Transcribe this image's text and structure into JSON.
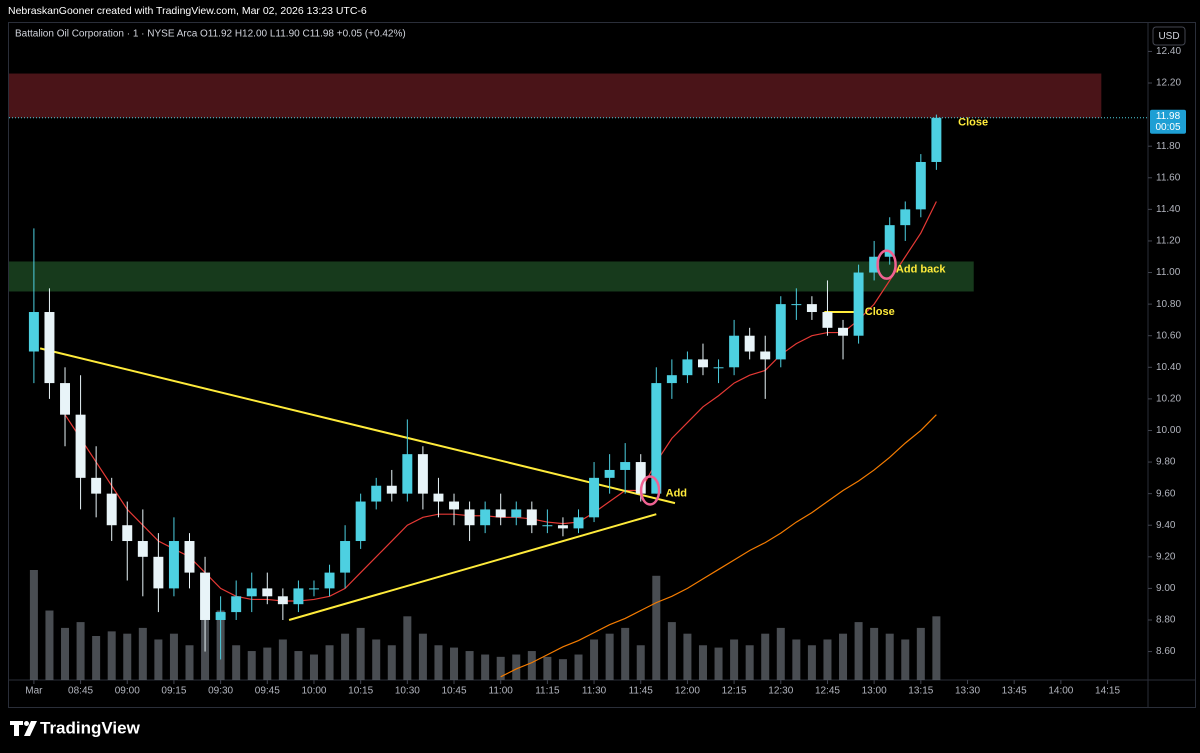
{
  "header": {
    "credit": "NebraskanGooner created with TradingView.com, Mar 02, 2026 13:23 UTC-6",
    "symbol": "Battalion Oil Corporation · 1 · NYSE Arca",
    "ohlc": "O11.92 H12.00 L11.90 C11.98 +0.05 (+0.42%)",
    "currency": "USD"
  },
  "footer": {
    "brand": "TradingView"
  },
  "chart_data": {
    "type": "candlestick",
    "x": [
      "08:30",
      "08:35",
      "08:40",
      "08:45",
      "08:50",
      "08:55",
      "09:00",
      "09:05",
      "09:10",
      "09:15",
      "09:20",
      "09:25",
      "09:30",
      "09:35",
      "09:40",
      "09:45",
      "09:50",
      "09:55",
      "10:00",
      "10:05",
      "10:10",
      "10:15",
      "10:20",
      "10:25",
      "10:30",
      "10:35",
      "10:40",
      "10:45",
      "10:50",
      "10:55",
      "11:00",
      "11:05",
      "11:10",
      "11:15",
      "11:20",
      "11:25",
      "11:30",
      "11:35",
      "11:40",
      "11:45",
      "11:50",
      "11:55",
      "12:00",
      "12:05",
      "12:10",
      "12:15",
      "12:20",
      "12:25",
      "12:30",
      "12:35",
      "12:40",
      "12:45",
      "12:50",
      "12:55",
      "13:00",
      "13:05",
      "13:10",
      "13:15",
      "13:20"
    ],
    "open": [
      10.5,
      10.75,
      10.3,
      10.1,
      9.7,
      9.6,
      9.4,
      9.3,
      9.2,
      9.0,
      9.3,
      9.1,
      8.8,
      8.85,
      8.95,
      9.0,
      8.95,
      8.9,
      9.0,
      9.0,
      9.1,
      9.3,
      9.55,
      9.65,
      9.6,
      9.85,
      9.6,
      9.55,
      9.5,
      9.4,
      9.5,
      9.45,
      9.5,
      9.4,
      9.4,
      9.38,
      9.45,
      9.7,
      9.75,
      9.8,
      9.6,
      10.3,
      10.35,
      10.45,
      10.4,
      10.4,
      10.6,
      10.5,
      10.45,
      10.8,
      10.8,
      10.75,
      10.65,
      10.6,
      11.0,
      11.1,
      11.3,
      11.4,
      11.7
    ],
    "high": [
      11.28,
      10.9,
      10.4,
      10.35,
      9.9,
      9.7,
      9.55,
      9.5,
      9.35,
      9.45,
      9.35,
      9.2,
      8.95,
      9.05,
      9.1,
      9.1,
      9.0,
      9.05,
      9.05,
      9.15,
      9.4,
      9.6,
      9.7,
      9.75,
      10.07,
      9.9,
      9.7,
      9.6,
      9.55,
      9.55,
      9.6,
      9.55,
      9.55,
      9.5,
      9.45,
      9.5,
      9.8,
      9.85,
      9.92,
      9.85,
      10.4,
      10.45,
      10.5,
      10.55,
      10.45,
      10.7,
      10.65,
      10.6,
      10.85,
      10.9,
      10.85,
      10.95,
      10.7,
      11.05,
      11.2,
      11.35,
      11.45,
      11.75,
      12.0
    ],
    "low": [
      10.3,
      10.2,
      9.9,
      9.5,
      9.45,
      9.3,
      9.05,
      8.95,
      8.85,
      8.95,
      9.0,
      8.6,
      8.55,
      8.8,
      8.85,
      8.9,
      8.8,
      8.85,
      8.95,
      8.95,
      9.0,
      9.25,
      9.5,
      9.55,
      9.55,
      9.5,
      9.45,
      9.4,
      9.3,
      9.35,
      9.4,
      9.4,
      9.35,
      9.35,
      9.33,
      9.35,
      9.42,
      9.6,
      9.6,
      9.55,
      9.6,
      10.2,
      10.3,
      10.35,
      10.3,
      10.35,
      10.45,
      10.2,
      10.4,
      10.7,
      10.7,
      10.6,
      10.45,
      10.55,
      10.95,
      11.05,
      11.2,
      11.35,
      11.65
    ],
    "close": [
      10.75,
      10.3,
      10.1,
      9.7,
      9.6,
      9.4,
      9.3,
      9.2,
      9.0,
      9.3,
      9.1,
      8.8,
      8.85,
      8.95,
      9.0,
      8.95,
      8.9,
      9.0,
      9.0,
      9.1,
      9.3,
      9.55,
      9.65,
      9.6,
      9.85,
      9.6,
      9.55,
      9.5,
      9.4,
      9.5,
      9.45,
      9.5,
      9.4,
      9.4,
      9.38,
      9.45,
      9.7,
      9.75,
      9.8,
      9.6,
      10.3,
      10.35,
      10.45,
      10.4,
      10.4,
      10.6,
      10.5,
      10.45,
      10.8,
      10.8,
      10.75,
      10.65,
      10.6,
      11.0,
      11.1,
      11.3,
      11.4,
      11.7,
      11.98
    ],
    "volume": [
      95,
      60,
      45,
      50,
      38,
      42,
      40,
      45,
      35,
      40,
      30,
      55,
      60,
      30,
      25,
      28,
      35,
      25,
      22,
      30,
      40,
      45,
      35,
      30,
      55,
      40,
      30,
      28,
      25,
      22,
      20,
      22,
      25,
      20,
      18,
      22,
      35,
      40,
      45,
      30,
      90,
      50,
      40,
      30,
      28,
      35,
      30,
      40,
      45,
      35,
      30,
      35,
      40,
      50,
      45,
      40,
      35,
      45,
      55
    ],
    "overlays": [
      {
        "color": "#e53935",
        "values": [
          null,
          null,
          10.1,
          9.95,
          9.8,
          9.65,
          9.5,
          9.4,
          9.3,
          9.25,
          9.2,
          9.1,
          9.0,
          8.95,
          8.93,
          8.93,
          8.92,
          8.92,
          8.93,
          8.95,
          9.0,
          9.1,
          9.2,
          9.3,
          9.4,
          9.45,
          9.47,
          9.47,
          9.46,
          9.46,
          9.45,
          9.45,
          9.44,
          9.42,
          9.41,
          9.42,
          9.48,
          9.55,
          9.62,
          9.62,
          9.8,
          9.95,
          10.05,
          10.15,
          10.22,
          10.3,
          10.35,
          10.38,
          10.48,
          10.55,
          10.6,
          10.62,
          10.62,
          10.7,
          10.8,
          10.95,
          11.1,
          11.25,
          11.45
        ]
      },
      {
        "color": "#f57c00",
        "values": [
          null,
          null,
          null,
          null,
          null,
          null,
          null,
          null,
          null,
          null,
          null,
          null,
          null,
          null,
          null,
          null,
          null,
          null,
          null,
          null,
          null,
          null,
          null,
          null,
          null,
          null,
          null,
          null,
          null,
          null,
          8.44,
          8.49,
          8.53,
          8.58,
          8.63,
          8.67,
          8.72,
          8.77,
          8.81,
          8.86,
          8.91,
          8.95,
          9.0,
          9.06,
          9.12,
          9.18,
          9.24,
          9.29,
          9.35,
          9.42,
          9.48,
          9.55,
          9.62,
          9.68,
          9.75,
          9.83,
          9.92,
          10.0,
          10.1
        ]
      }
    ],
    "up_color": "#4dd0e1",
    "down_color": "#e8f4f8",
    "volume_color": "#5b6066",
    "zones": [
      {
        "from": 11.98,
        "to": 12.26,
        "start": "08:22",
        "end": "14:13",
        "color": "#4a1418"
      },
      {
        "from": 10.88,
        "to": 11.07,
        "start": "08:22",
        "end": "13:32",
        "color": "#173a1c"
      }
    ],
    "trendlines": [
      {
        "x": [
          "08:32",
          "11:56"
        ],
        "y": [
          10.52,
          9.54
        ],
        "color": "#ffeb3b"
      },
      {
        "x": [
          "09:52",
          "11:50"
        ],
        "y": [
          8.8,
          9.47
        ],
        "color": "#ffeb3b"
      },
      {
        "x": [
          "12:44",
          "12:55"
        ],
        "y": [
          10.75,
          10.75
        ],
        "color": "#ffeb3b"
      }
    ],
    "circles": [
      {
        "x": "11:48",
        "y": 9.62
      },
      {
        "x": "13:04",
        "y": 11.05
      }
    ],
    "annotations": [
      {
        "text": "Add",
        "x": "11:53",
        "y": 9.6
      },
      {
        "text": "Close",
        "x": "12:57",
        "y": 10.75
      },
      {
        "text": "Add back",
        "x": "13:07",
        "y": 11.02
      },
      {
        "text": "Close",
        "x": "13:27",
        "y": 11.95
      }
    ],
    "last_price": {
      "value": 11.98,
      "label": "11.98",
      "countdown": "00:05"
    },
    "xlim": [
      "08:22",
      "14:28"
    ],
    "xticks": [
      {
        "value": "08:30",
        "label": "Mar"
      },
      "08:45",
      "09:00",
      "09:15",
      "09:30",
      "09:45",
      "10:00",
      "10:15",
      "10:30",
      "10:45",
      "11:00",
      "11:15",
      "11:30",
      "11:45",
      "12:00",
      "12:15",
      "12:30",
      "12:45",
      "13:00",
      "13:15",
      "13:30",
      "13:45",
      "14:00",
      "14:15"
    ],
    "ylim": [
      8.42,
      12.58
    ],
    "yticks": [
      {
        "value": 8.6,
        "label": "8.60"
      },
      {
        "value": 8.8,
        "label": "8.80"
      },
      {
        "value": 9.0,
        "label": "9.00"
      },
      {
        "value": 9.2,
        "label": "9.20"
      },
      {
        "value": 9.4,
        "label": "9.40"
      },
      {
        "value": 9.6,
        "label": "9.60"
      },
      {
        "value": 9.8,
        "label": "9.80"
      },
      {
        "value": 10.0,
        "label": "10.00"
      },
      {
        "value": 10.2,
        "label": "10.20"
      },
      {
        "value": 10.4,
        "label": "10.40"
      },
      {
        "value": 10.6,
        "label": "10.60"
      },
      {
        "value": 10.8,
        "label": "10.80"
      },
      {
        "value": 11.0,
        "label": "11.00"
      },
      {
        "value": 11.2,
        "label": "11.20"
      },
      {
        "value": 11.4,
        "label": "11.40"
      },
      {
        "value": 11.6,
        "label": "11.60"
      },
      {
        "value": 11.8,
        "label": "11.80"
      },
      {
        "value": 12.2,
        "label": "12.20"
      },
      {
        "value": 12.4,
        "label": "12.40"
      }
    ]
  }
}
